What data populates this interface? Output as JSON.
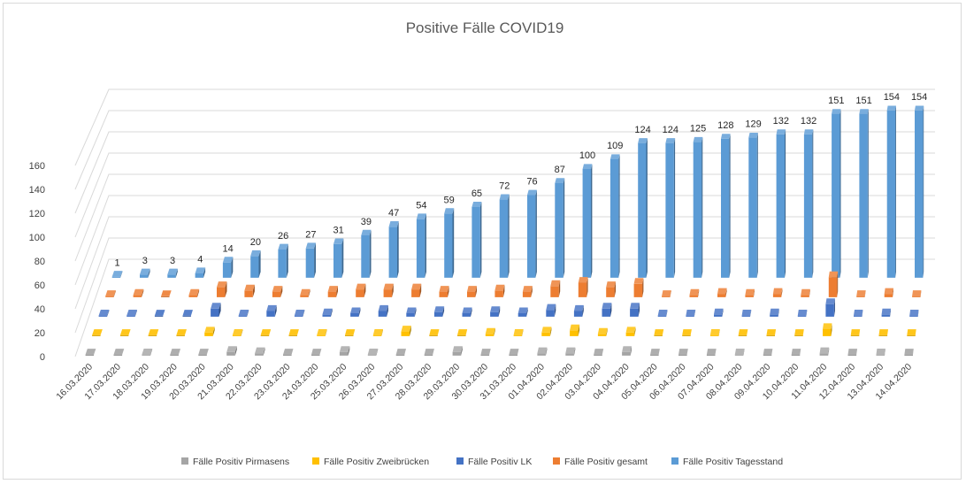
{
  "chart_data": {
    "type": "bar",
    "subtype": "3d-clustered-column",
    "title": "Positive Fälle COVID19",
    "xlabel": "",
    "ylabel": "",
    "ylim": [
      0,
      160
    ],
    "yticks": [
      0,
      20,
      40,
      60,
      80,
      100,
      120,
      140,
      160
    ],
    "grid": true,
    "legend_position": "bottom",
    "categories": [
      "16.03.2020",
      "17.03.2020",
      "18.03.2020",
      "19.03.2020",
      "20.03.2020",
      "21.03.2020",
      "22.03.2020",
      "23.03.2020",
      "24.03.2020",
      "25.03.2020",
      "26.03.2020",
      "27.03.2020",
      "28.03.2020",
      "29.03.2020",
      "30.03.2020",
      "31.03.2020",
      "01.04.2020",
      "02.04.2020",
      "03.04.2020",
      "04.04.2020",
      "05.04.2020",
      "06.04.2020",
      "07.04.2020",
      "08.04.2020",
      "09.04.2020",
      "10.04.2020",
      "11.04.2020",
      "12.04.2020",
      "13.04.2020",
      "14.04.2020"
    ],
    "series": [
      {
        "name": "Fälle Positiv Pirmasens",
        "color": "#a5a5a5",
        "values": [
          0,
          0,
          1,
          0,
          0,
          3,
          2,
          0,
          0,
          3,
          1,
          0,
          0,
          3,
          0,
          0,
          2,
          2,
          0,
          3,
          0,
          0,
          0,
          1,
          0,
          0,
          2,
          0,
          1,
          0
        ]
      },
      {
        "name": "Fälle Positiv Zweibrücken",
        "color": "#ffc000",
        "values": [
          0,
          0,
          0,
          0,
          3,
          1,
          0,
          0,
          1,
          0,
          1,
          4,
          0,
          0,
          2,
          1,
          3,
          5,
          2,
          3,
          0,
          0,
          1,
          0,
          0,
          0,
          6,
          0,
          0,
          0
        ]
      },
      {
        "name": "Fälle Positiv LK",
        "color": "#4472c4",
        "values": [
          1,
          1,
          0,
          0,
          7,
          1,
          5,
          1,
          2,
          3,
          5,
          3,
          4,
          3,
          4,
          3,
          6,
          5,
          7,
          7,
          1,
          1,
          2,
          1,
          2,
          1,
          11,
          1,
          2,
          1
        ]
      },
      {
        "name": "Fälle Positiv gesamt",
        "color": "#ed7d31",
        "values": [
          1,
          2,
          0,
          2,
          9,
          6,
          5,
          2,
          5,
          7,
          7,
          7,
          5,
          5,
          6,
          5,
          10,
          13,
          9,
          12,
          1,
          2,
          3,
          2,
          3,
          2,
          18,
          1,
          3,
          1
        ]
      },
      {
        "name": "Fälle Positiv Tagesstand",
        "color": "#5b9bd5",
        "values": [
          1,
          3,
          3,
          4,
          14,
          20,
          26,
          27,
          31,
          39,
          47,
          54,
          59,
          65,
          72,
          76,
          87,
          100,
          109,
          124,
          124,
          125,
          128,
          129,
          132,
          132,
          151,
          151,
          154,
          154
        ],
        "data_labels": true
      }
    ]
  }
}
